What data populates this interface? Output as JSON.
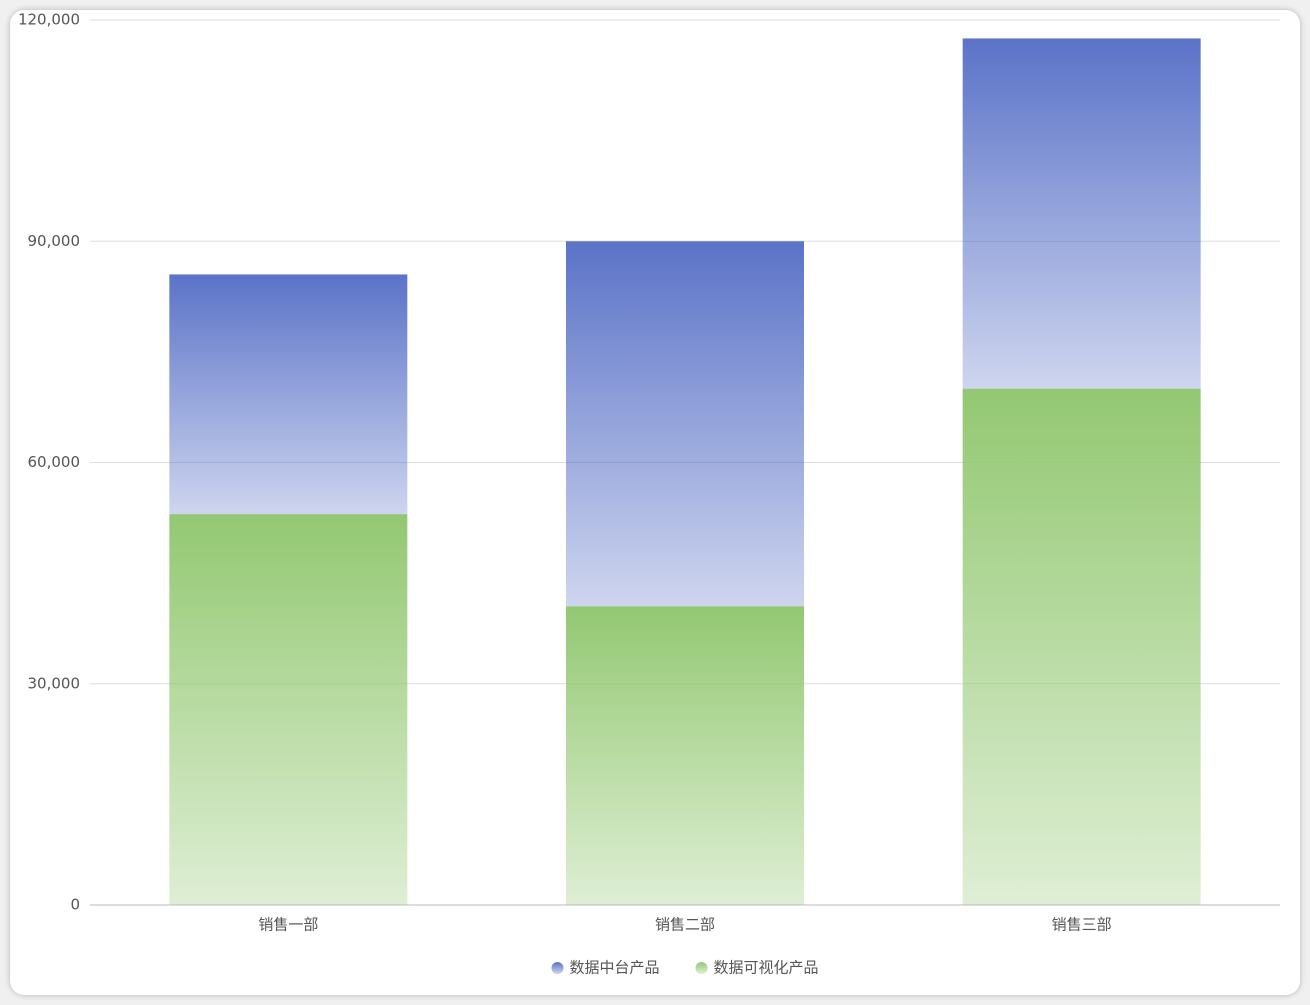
{
  "chart_data": {
    "type": "stacked-bar",
    "categories": [
      "销售一部",
      "销售二部",
      "销售三部"
    ],
    "series": [
      {
        "name": "数据中台产品",
        "color": "#5b73c8",
        "values": [
          32500,
          49500,
          47500
        ]
      },
      {
        "name": "数据可视化产品",
        "color": "#93c872",
        "values": [
          53000,
          40500,
          70000
        ]
      }
    ],
    "ylim": [
      0,
      120000
    ],
    "yticks": [
      0,
      {
        "value": 30000,
        "label": "30,000"
      },
      {
        "value": 60000,
        "label": "60,000"
      },
      {
        "value": 90000,
        "label": "90,000"
      },
      {
        "value": 120000,
        "label": "120,000"
      }
    ],
    "grid": true,
    "legend": "bottom"
  }
}
